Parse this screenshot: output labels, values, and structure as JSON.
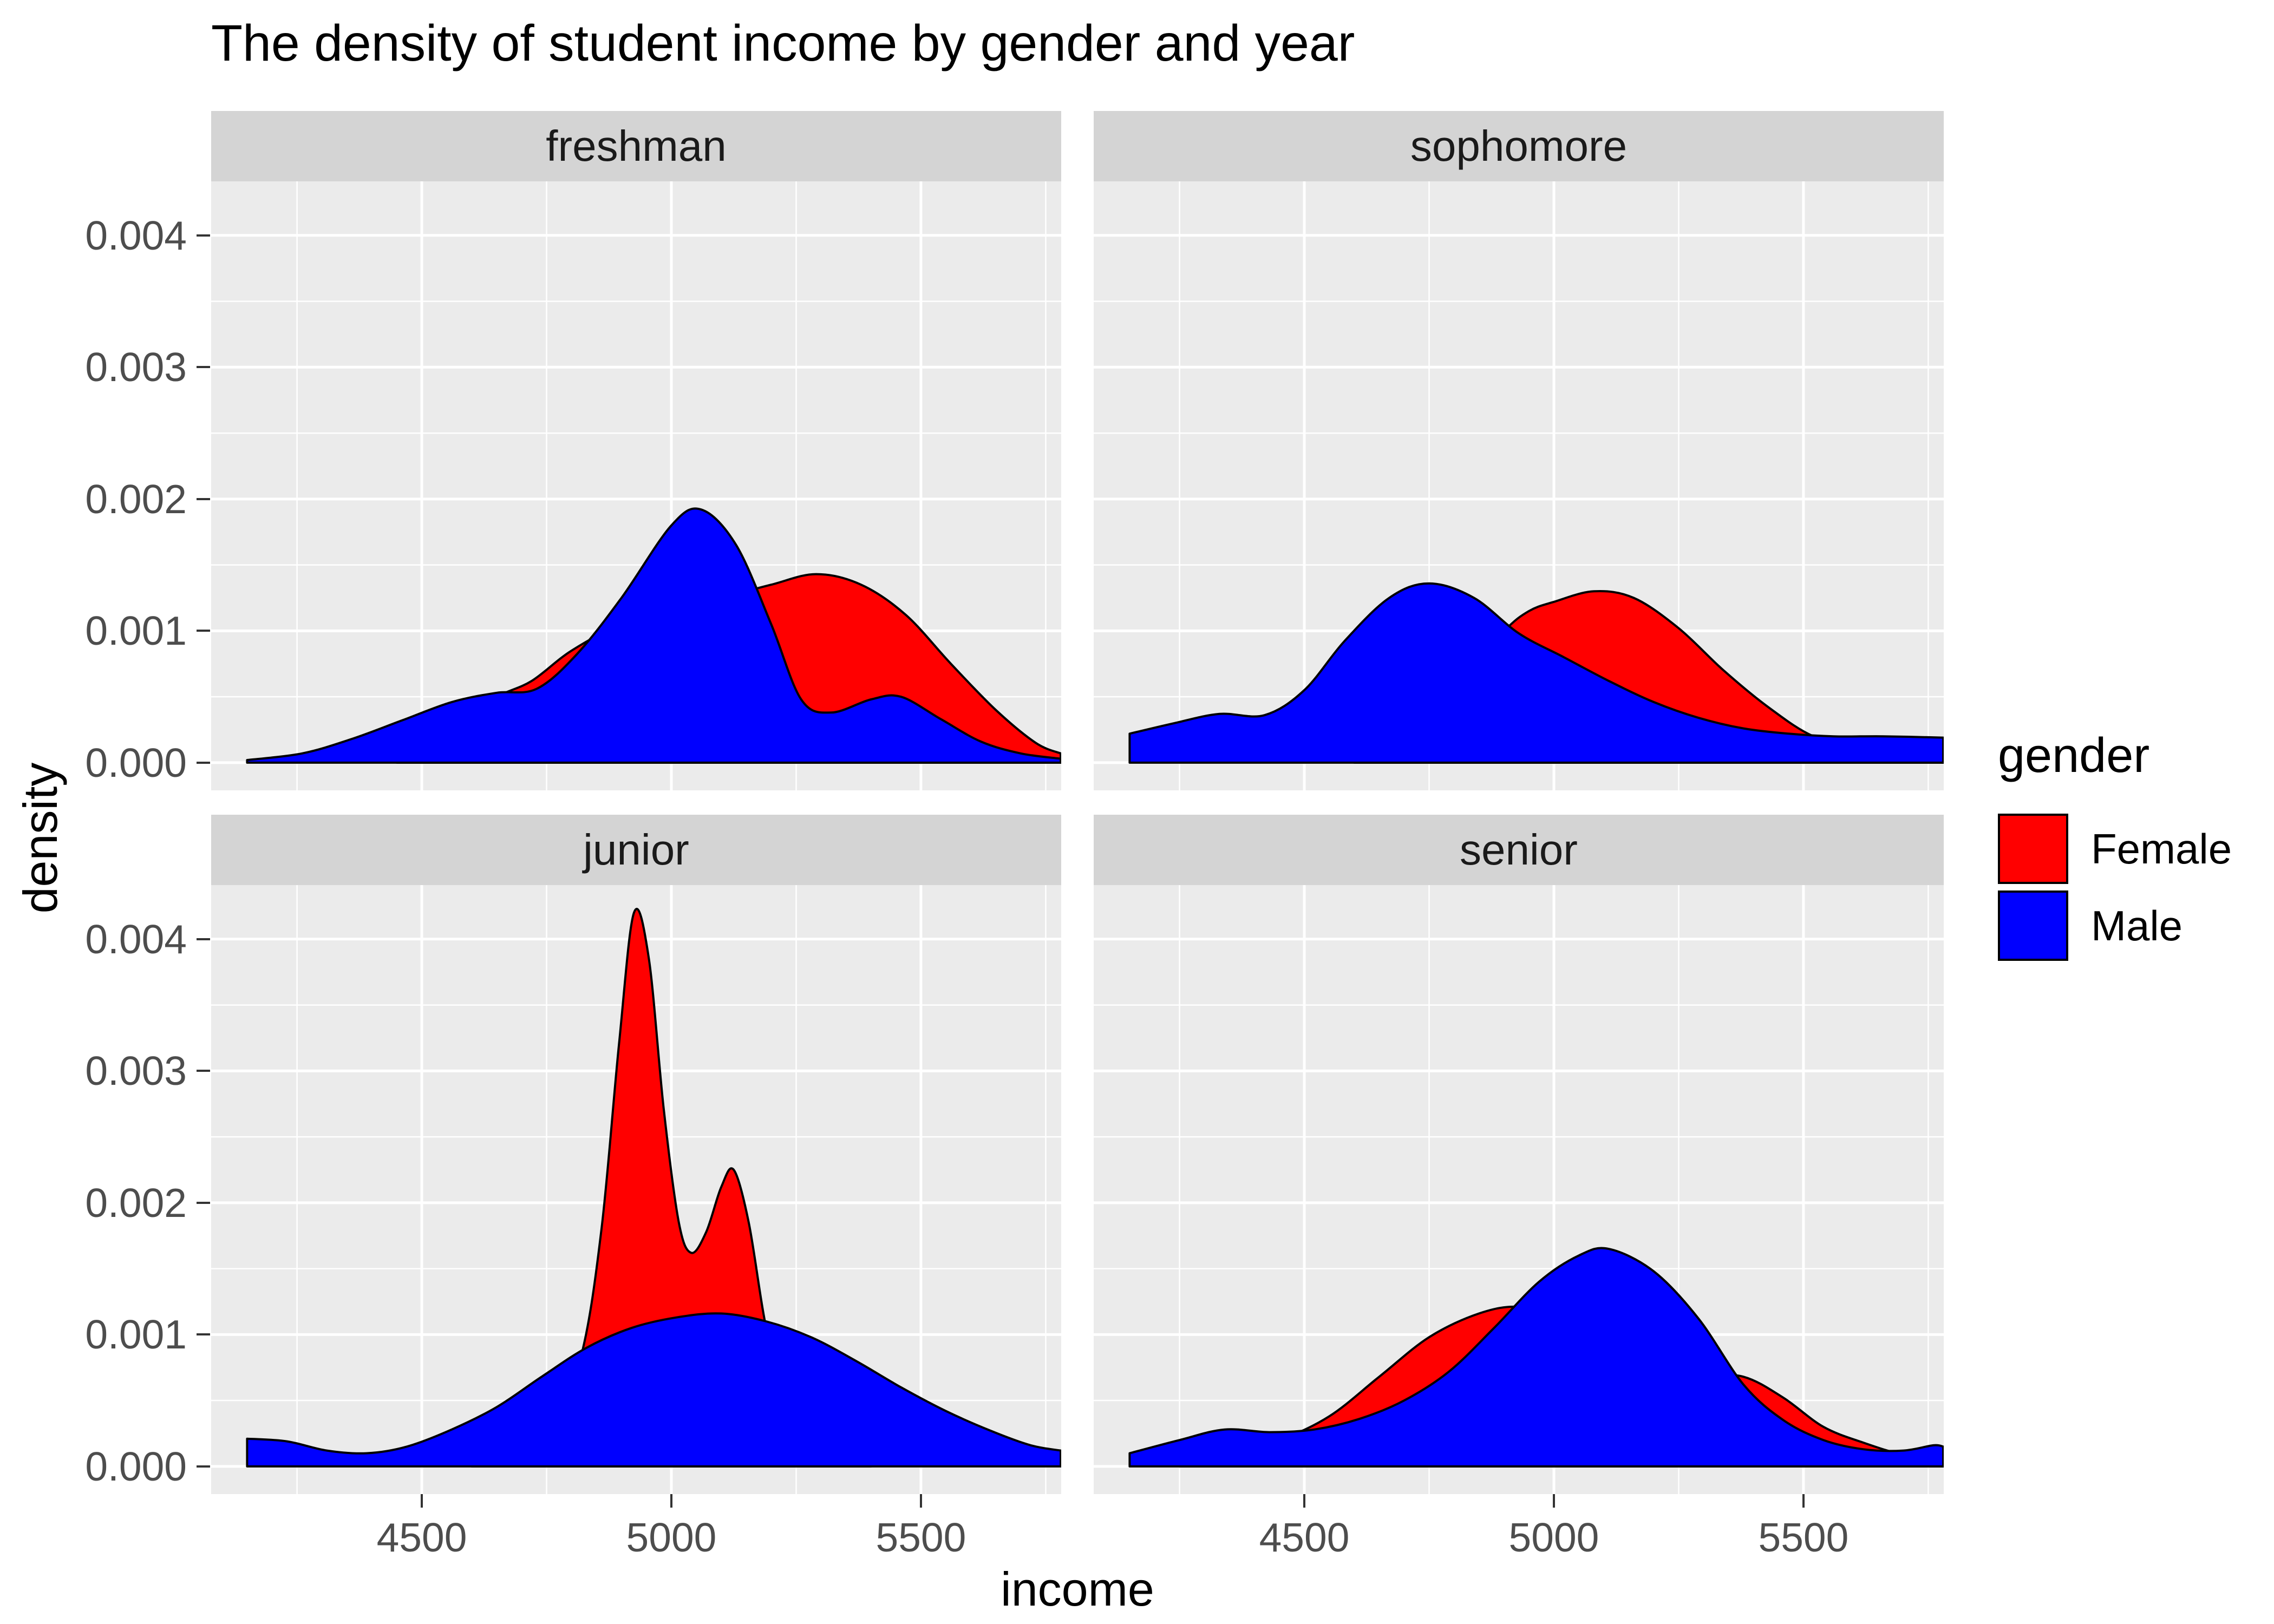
{
  "title": "The density of student income by gender and year",
  "axes": {
    "x_title": "income",
    "y_title": "density",
    "x_ticks": [
      "4500",
      "5000",
      "5500"
    ],
    "x_tick_values": [
      4500,
      5000,
      5500
    ],
    "y_ticks": [
      "0.000",
      "0.001",
      "0.002",
      "0.003",
      "0.004"
    ],
    "y_tick_values": [
      0,
      0.001,
      0.002,
      0.003,
      0.004
    ]
  },
  "legend": {
    "title": "gender",
    "entries": [
      {
        "label": "Female",
        "color": "#FF0000"
      },
      {
        "label": "Male",
        "color": "#0000FF"
      }
    ]
  },
  "colors": {
    "female": "#FF0000",
    "male": "#0000FF",
    "panel_bg": "#EBEBEB",
    "strip_bg": "#D4D4D4",
    "grid": "#FFFFFF",
    "axis_text": "#4D4D4D",
    "tick": "#333333",
    "outline": "#000000"
  },
  "chart_data": {
    "type": "area",
    "subtype": "faceted-density",
    "title": "The density of student income by gender and year",
    "xlabel": "income",
    "ylabel": "density",
    "x_domain": [
      4078,
      5781
    ],
    "y_domain": [
      -0.00021,
      0.00441
    ],
    "x_major": [
      4500,
      5000,
      5500
    ],
    "x_minor": [
      4250,
      4750,
      5250,
      5750
    ],
    "y_major": [
      0,
      0.001,
      0.002,
      0.003,
      0.004
    ],
    "y_minor": [
      0.0005,
      0.0015,
      0.0025,
      0.0035
    ],
    "legend_position": "right",
    "facets": [
      {
        "label": "freshman",
        "series": [
          {
            "name": "Female",
            "color": "#FF0000",
            "points": [
              [
                4450,
                8e-05
              ],
              [
                4550,
                0.00028
              ],
              [
                4650,
                0.0005
              ],
              [
                4720,
                0.00062
              ],
              [
                4800,
                0.00085
              ],
              [
                4900,
                0.00105
              ],
              [
                5000,
                0.00115
              ],
              [
                5100,
                0.00125
              ],
              [
                5200,
                0.00135
              ],
              [
                5290,
                0.00143
              ],
              [
                5380,
                0.00135
              ],
              [
                5470,
                0.00112
              ],
              [
                5560,
                0.00075
              ],
              [
                5650,
                0.0004
              ],
              [
                5730,
                0.00015
              ],
              [
                5780,
                7e-05
              ]
            ]
          },
          {
            "name": "Male",
            "color": "#0000FF",
            "points": [
              [
                4150,
                2e-05
              ],
              [
                4260,
                7e-05
              ],
              [
                4360,
                0.00018
              ],
              [
                4460,
                0.00032
              ],
              [
                4560,
                0.00046
              ],
              [
                4650,
                0.00053
              ],
              [
                4730,
                0.00056
              ],
              [
                4810,
                0.00082
              ],
              [
                4900,
                0.00125
              ],
              [
                5000,
                0.0018
              ],
              [
                5060,
                0.00192
              ],
              [
                5130,
                0.00165
              ],
              [
                5200,
                0.00105
              ],
              [
                5260,
                0.00048
              ],
              [
                5320,
                0.00038
              ],
              [
                5400,
                0.00048
              ],
              [
                5460,
                0.0005
              ],
              [
                5540,
                0.00033
              ],
              [
                5620,
                0.00016
              ],
              [
                5700,
                7e-05
              ],
              [
                5780,
                3e-05
              ]
            ]
          }
        ]
      },
      {
        "label": "sophomore",
        "series": [
          {
            "name": "Female",
            "color": "#FF0000",
            "points": [
              [
                4600,
                0.0001
              ],
              [
                4700,
                0.0003
              ],
              [
                4800,
                0.0006
              ],
              [
                4900,
                0.001
              ],
              [
                4950,
                0.00115
              ],
              [
                5000,
                0.00122
              ],
              [
                5080,
                0.0013
              ],
              [
                5160,
                0.00125
              ],
              [
                5250,
                0.00102
              ],
              [
                5340,
                0.0007
              ],
              [
                5430,
                0.00042
              ],
              [
                5520,
                0.0002
              ],
              [
                5620,
                0.0001
              ],
              [
                5720,
                8e-05
              ],
              [
                5780,
                6e-05
              ]
            ]
          },
          {
            "name": "Male",
            "color": "#0000FF",
            "points": [
              [
                4150,
                0.00022
              ],
              [
                4240,
                0.0003
              ],
              [
                4330,
                0.00037
              ],
              [
                4420,
                0.00036
              ],
              [
                4500,
                0.00055
              ],
              [
                4580,
                0.00092
              ],
              [
                4670,
                0.00125
              ],
              [
                4750,
                0.00136
              ],
              [
                4840,
                0.00125
              ],
              [
                4930,
                0.00098
              ],
              [
                5020,
                0.0008
              ],
              [
                5110,
                0.00062
              ],
              [
                5200,
                0.00046
              ],
              [
                5290,
                0.00034
              ],
              [
                5380,
                0.00026
              ],
              [
                5470,
                0.00022
              ],
              [
                5560,
                0.0002
              ],
              [
                5660,
                0.0002
              ],
              [
                5780,
                0.00019
              ]
            ]
          }
        ]
      },
      {
        "label": "junior",
        "series": [
          {
            "name": "Female",
            "color": "#FF0000",
            "points": [
              [
                4600,
                3e-05
              ],
              [
                4690,
                0.0001
              ],
              [
                4760,
                0.0003
              ],
              [
                4820,
                0.00085
              ],
              [
                4860,
                0.0018
              ],
              [
                4895,
                0.0032
              ],
              [
                4925,
                0.0042
              ],
              [
                4955,
                0.00385
              ],
              [
                4985,
                0.0027
              ],
              [
                5015,
                0.00185
              ],
              [
                5040,
                0.00162
              ],
              [
                5070,
                0.00178
              ],
              [
                5100,
                0.00212
              ],
              [
                5125,
                0.00225
              ],
              [
                5155,
                0.00185
              ],
              [
                5185,
                0.00115
              ],
              [
                5215,
                0.0006
              ],
              [
                5255,
                0.00028
              ],
              [
                5310,
                0.0001
              ],
              [
                5400,
                3e-05
              ]
            ]
          },
          {
            "name": "Male",
            "color": "#0000FF",
            "points": [
              [
                4150,
                0.00021
              ],
              [
                4230,
                0.00019
              ],
              [
                4310,
                0.00012
              ],
              [
                4390,
                0.0001
              ],
              [
                4470,
                0.00015
              ],
              [
                4560,
                0.00028
              ],
              [
                4650,
                0.00045
              ],
              [
                4740,
                0.00068
              ],
              [
                4830,
                0.0009
              ],
              [
                4920,
                0.00105
              ],
              [
                5010,
                0.00113
              ],
              [
                5100,
                0.00116
              ],
              [
                5190,
                0.0011
              ],
              [
                5280,
                0.00098
              ],
              [
                5370,
                0.0008
              ],
              [
                5460,
                0.0006
              ],
              [
                5550,
                0.00042
              ],
              [
                5640,
                0.00027
              ],
              [
                5720,
                0.00016
              ],
              [
                5780,
                0.00012
              ]
            ]
          }
        ]
      },
      {
        "label": "senior",
        "series": [
          {
            "name": "Female",
            "color": "#FF0000",
            "points": [
              [
                4250,
                4e-05
              ],
              [
                4350,
                0.0001
              ],
              [
                4450,
                0.0002
              ],
              [
                4550,
                0.00038
              ],
              [
                4650,
                0.00068
              ],
              [
                4750,
                0.00098
              ],
              [
                4850,
                0.00116
              ],
              [
                4930,
                0.00121
              ],
              [
                5010,
                0.00112
              ],
              [
                5100,
                0.00096
              ],
              [
                5200,
                0.0008
              ],
              [
                5290,
                0.0007
              ],
              [
                5380,
                0.00068
              ],
              [
                5460,
                0.00052
              ],
              [
                5540,
                0.0003
              ],
              [
                5620,
                0.00018
              ],
              [
                5700,
                9e-05
              ],
              [
                5780,
                6e-05
              ]
            ]
          },
          {
            "name": "Male",
            "color": "#0000FF",
            "points": [
              [
                4150,
                0.0001
              ],
              [
                4250,
                0.0002
              ],
              [
                4340,
                0.00028
              ],
              [
                4430,
                0.00026
              ],
              [
                4520,
                0.00028
              ],
              [
                4610,
                0.00036
              ],
              [
                4700,
                0.0005
              ],
              [
                4790,
                0.00072
              ],
              [
                4880,
                0.00105
              ],
              [
                4970,
                0.0014
              ],
              [
                5050,
                0.0016
              ],
              [
                5110,
                0.00165
              ],
              [
                5200,
                0.00148
              ],
              [
                5290,
                0.00112
              ],
              [
                5380,
                0.00062
              ],
              [
                5460,
                0.00035
              ],
              [
                5540,
                0.0002
              ],
              [
                5620,
                0.00013
              ],
              [
                5700,
                0.00012
              ],
              [
                5760,
                0.00016
              ],
              [
                5780,
                0.00015
              ]
            ]
          }
        ]
      }
    ]
  }
}
